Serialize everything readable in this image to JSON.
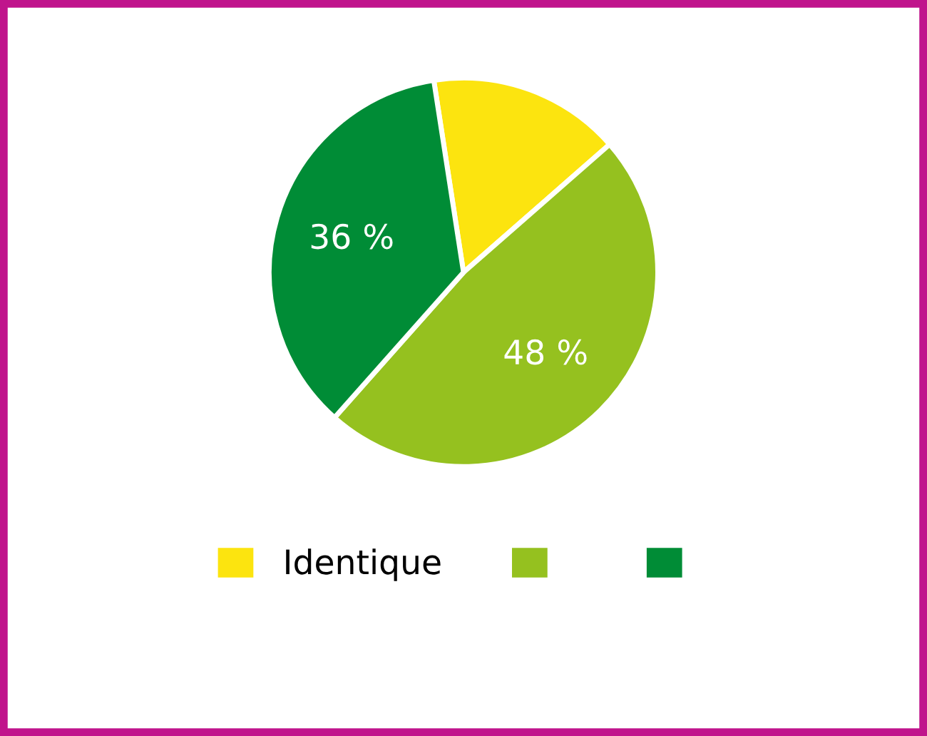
{
  "chart_data": {
    "type": "pie",
    "categories": [
      "Identique",
      null,
      null
    ],
    "values": [
      16,
      48,
      36
    ],
    "colors": [
      "#fce40f",
      "#95c11f",
      "#008c36"
    ],
    "value_labels": [
      null,
      "48 %",
      "36 %"
    ],
    "legend": "bottom"
  }
}
